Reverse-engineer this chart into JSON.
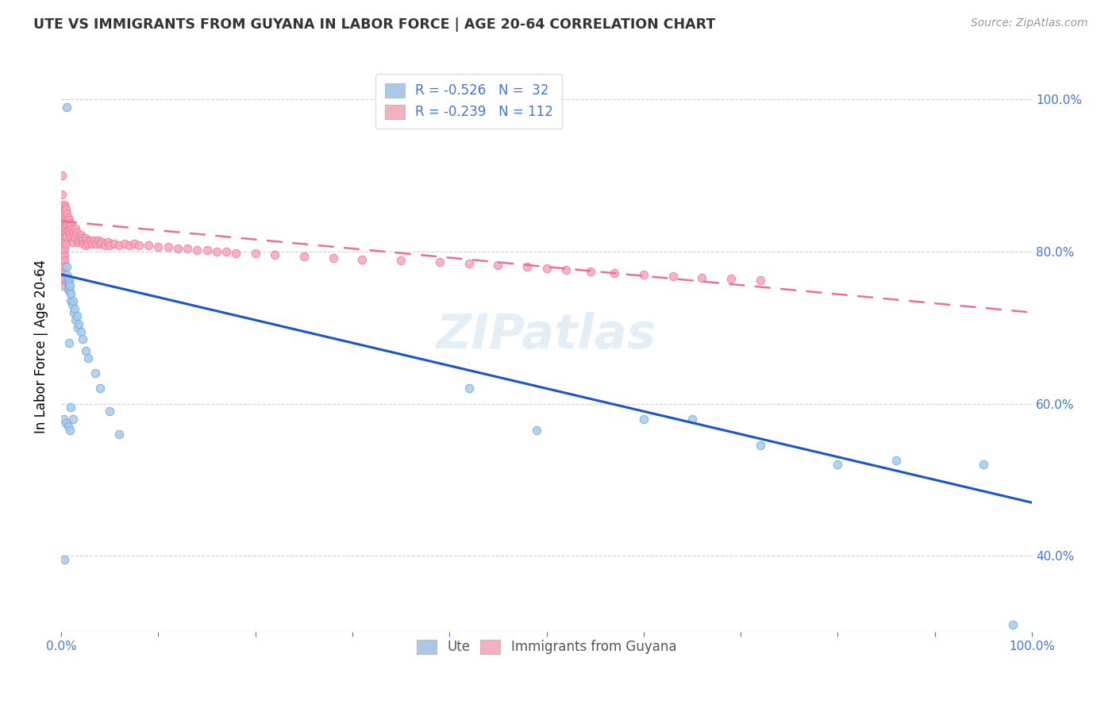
{
  "title": "UTE VS IMMIGRANTS FROM GUYANA IN LABOR FORCE | AGE 20-64 CORRELATION CHART",
  "source": "Source: ZipAtlas.com",
  "ylabel": "In Labor Force | Age 20-64",
  "legend_label1": "R = -0.526   N =  32",
  "legend_label2": "R = -0.239   N = 112",
  "legend_color1": "#aac8e8",
  "legend_color2": "#f4b0c0",
  "watermark": "ZIPatlas",
  "ute_color": "#a8ccee",
  "guyana_color": "#f4a8bc",
  "ute_edge_color": "#7aaad8",
  "guyana_edge_color": "#ee8098",
  "ute_line_color": "#1a56c8",
  "guyana_line_color": "#ee7090",
  "ute_x": [
    0.006,
    0.006,
    0.006,
    0.007,
    0.007,
    0.008,
    0.008,
    0.008,
    0.009,
    0.009,
    0.01,
    0.01,
    0.011,
    0.012,
    0.013,
    0.014,
    0.015,
    0.016,
    0.017,
    0.018,
    0.02,
    0.022,
    0.025,
    0.028,
    0.035,
    0.04,
    0.05,
    0.06,
    0.006,
    0.008,
    0.01,
    0.012
  ],
  "ute_y": [
    0.76,
    0.77,
    0.78,
    0.75,
    0.76,
    0.755,
    0.765,
    0.758,
    0.748,
    0.755,
    0.735,
    0.745,
    0.73,
    0.735,
    0.72,
    0.725,
    0.71,
    0.715,
    0.7,
    0.705,
    0.695,
    0.685,
    0.67,
    0.66,
    0.64,
    0.62,
    0.59,
    0.56,
    0.99,
    0.68,
    0.595,
    0.58
  ],
  "ute_x_extra": [
    0.003,
    0.002,
    0.005,
    0.007,
    0.009,
    0.42,
    0.49,
    0.6,
    0.65,
    0.72,
    0.8,
    0.86,
    0.95,
    0.98
  ],
  "ute_y_extra": [
    0.395,
    0.58,
    0.575,
    0.57,
    0.565,
    0.62,
    0.565,
    0.58,
    0.58,
    0.545,
    0.52,
    0.525,
    0.52,
    0.31
  ],
  "guyana_x": [
    0.001,
    0.001,
    0.001,
    0.002,
    0.002,
    0.002,
    0.002,
    0.002,
    0.002,
    0.002,
    0.002,
    0.002,
    0.002,
    0.002,
    0.002,
    0.002,
    0.002,
    0.002,
    0.003,
    0.003,
    0.003,
    0.003,
    0.003,
    0.003,
    0.003,
    0.003,
    0.003,
    0.003,
    0.003,
    0.003,
    0.004,
    0.004,
    0.004,
    0.004,
    0.005,
    0.005,
    0.005,
    0.005,
    0.006,
    0.006,
    0.006,
    0.007,
    0.007,
    0.008,
    0.008,
    0.009,
    0.009,
    0.01,
    0.01,
    0.011,
    0.012,
    0.012,
    0.013,
    0.015,
    0.015,
    0.016,
    0.017,
    0.018,
    0.019,
    0.02,
    0.021,
    0.022,
    0.023,
    0.025,
    0.025,
    0.027,
    0.028,
    0.03,
    0.032,
    0.034,
    0.036,
    0.038,
    0.04,
    0.042,
    0.045,
    0.048,
    0.05,
    0.055,
    0.06,
    0.065,
    0.07,
    0.075,
    0.08,
    0.09,
    0.1,
    0.11,
    0.12,
    0.13,
    0.14,
    0.15,
    0.16,
    0.17,
    0.18,
    0.2,
    0.22,
    0.25,
    0.28,
    0.31,
    0.35,
    0.39,
    0.42,
    0.45,
    0.48,
    0.5,
    0.52,
    0.545,
    0.57,
    0.6,
    0.63,
    0.66,
    0.69,
    0.72
  ],
  "guyana_y": [
    0.9,
    0.875,
    0.86,
    0.855,
    0.848,
    0.84,
    0.835,
    0.828,
    0.82,
    0.815,
    0.808,
    0.8,
    0.793,
    0.785,
    0.778,
    0.77,
    0.762,
    0.755,
    0.862,
    0.85,
    0.84,
    0.83,
    0.82,
    0.812,
    0.803,
    0.795,
    0.788,
    0.78,
    0.772,
    0.765,
    0.858,
    0.845,
    0.832,
    0.82,
    0.855,
    0.84,
    0.825,
    0.81,
    0.85,
    0.835,
    0.82,
    0.845,
    0.83,
    0.842,
    0.828,
    0.838,
    0.824,
    0.835,
    0.82,
    0.83,
    0.825,
    0.812,
    0.82,
    0.83,
    0.818,
    0.825,
    0.812,
    0.82,
    0.815,
    0.822,
    0.818,
    0.815,
    0.81,
    0.818,
    0.808,
    0.815,
    0.81,
    0.815,
    0.81,
    0.815,
    0.81,
    0.815,
    0.81,
    0.812,
    0.808,
    0.812,
    0.808,
    0.81,
    0.808,
    0.81,
    0.808,
    0.81,
    0.808,
    0.808,
    0.806,
    0.806,
    0.804,
    0.804,
    0.802,
    0.802,
    0.8,
    0.8,
    0.798,
    0.798,
    0.796,
    0.794,
    0.792,
    0.79,
    0.788,
    0.786,
    0.784,
    0.782,
    0.78,
    0.778,
    0.776,
    0.774,
    0.772,
    0.77,
    0.768,
    0.766,
    0.764,
    0.762
  ],
  "ute_line_x0": 0.0,
  "ute_line_y0": 0.77,
  "ute_line_x1": 1.0,
  "ute_line_y1": 0.47,
  "guyana_line_x0": 0.0,
  "guyana_line_y0": 0.84,
  "guyana_line_x1": 1.0,
  "guyana_line_y1": 0.72,
  "xmin": 0.0,
  "xmax": 1.0,
  "ymin": 0.3,
  "ymax": 1.05,
  "background_color": "#ffffff",
  "grid_color": "#cccccc",
  "text_color": "#4477cc",
  "title_color": "#333333",
  "source_color": "#999999"
}
